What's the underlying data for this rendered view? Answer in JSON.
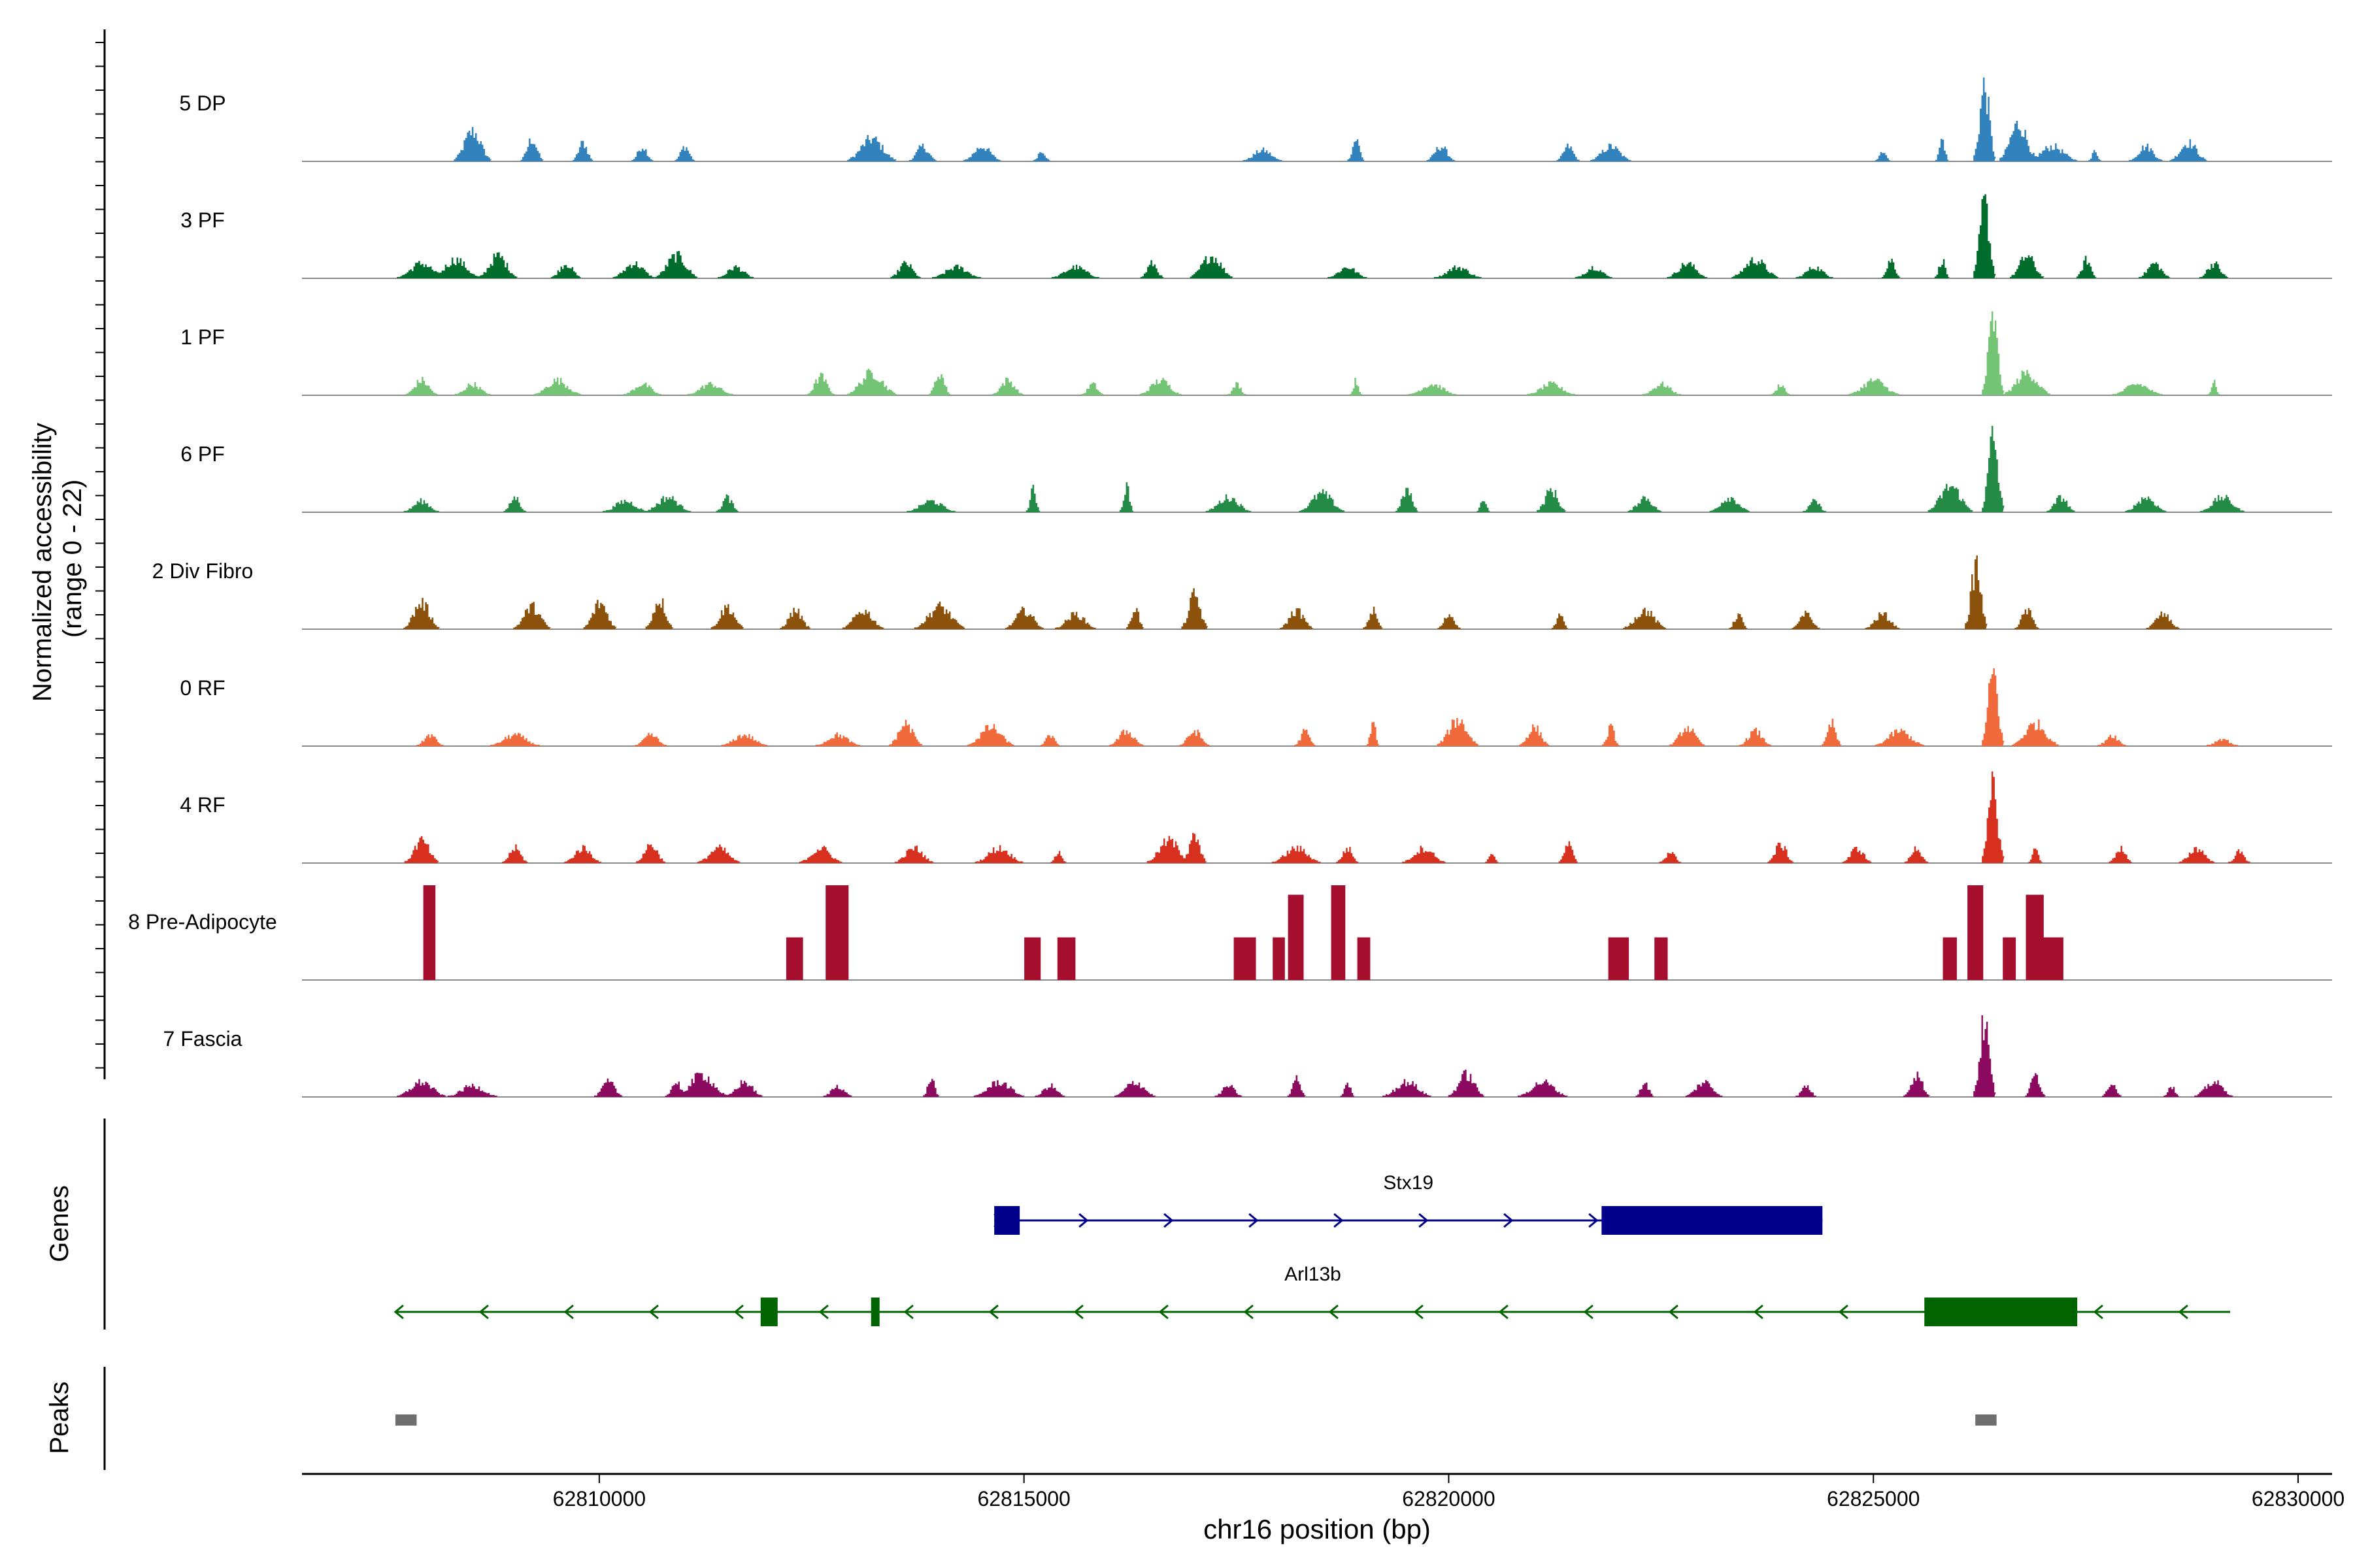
{
  "chart_data": {
    "type": "area",
    "title": "",
    "ylabel_line1": "Normalized accessibility",
    "ylabel_line2": "(range 0 - 22)",
    "ylim": [
      0,
      22
    ],
    "xlabel": "chr16 position (bp)",
    "xlim": [
      62806500,
      62830400
    ],
    "xticks": [
      62810000,
      62815000,
      62820000,
      62825000,
      62830000
    ],
    "xtick_labels": [
      "62810000",
      "62815000",
      "62820000",
      "62825000",
      "62830000"
    ],
    "tracks": [
      {
        "name": "5 DP",
        "color": "#3182BD",
        "peaks": [
          [
            62808500,
            0.4
          ],
          [
            62809200,
            0.3
          ],
          [
            62809800,
            0.25
          ],
          [
            62810500,
            0.2
          ],
          [
            62811000,
            0.2
          ],
          [
            62813200,
            0.3
          ],
          [
            62813800,
            0.2
          ],
          [
            62814500,
            0.2
          ],
          [
            62815200,
            0.15
          ],
          [
            62817800,
            0.15
          ],
          [
            62818900,
            0.3
          ],
          [
            62819900,
            0.2
          ],
          [
            62821400,
            0.2
          ],
          [
            62821900,
            0.2
          ],
          [
            62825100,
            0.15
          ],
          [
            62825800,
            0.3
          ],
          [
            62826300,
            1.0
          ],
          [
            62826700,
            0.5
          ],
          [
            62827100,
            0.2
          ],
          [
            62827600,
            0.15
          ],
          [
            62828200,
            0.2
          ],
          [
            62828700,
            0.25
          ]
        ]
      },
      {
        "name": "3 PF",
        "color": "#006D2C",
        "peaks": [
          [
            62807900,
            0.2
          ],
          [
            62808300,
            0.25
          ],
          [
            62808800,
            0.3
          ],
          [
            62809600,
            0.2
          ],
          [
            62810400,
            0.2
          ],
          [
            62810900,
            0.3
          ],
          [
            62811600,
            0.15
          ],
          [
            62813600,
            0.2
          ],
          [
            62814200,
            0.15
          ],
          [
            62815600,
            0.15
          ],
          [
            62816500,
            0.2
          ],
          [
            62817200,
            0.3
          ],
          [
            62818800,
            0.15
          ],
          [
            62820100,
            0.15
          ],
          [
            62821700,
            0.15
          ],
          [
            62822800,
            0.2
          ],
          [
            62823600,
            0.25
          ],
          [
            62824300,
            0.15
          ],
          [
            62825200,
            0.25
          ],
          [
            62825800,
            0.25
          ],
          [
            62826300,
            1.0
          ],
          [
            62826800,
            0.3
          ],
          [
            62827500,
            0.25
          ],
          [
            62828300,
            0.2
          ],
          [
            62829000,
            0.2
          ]
        ]
      },
      {
        "name": "1 PF",
        "color": "#74C476",
        "peaks": [
          [
            62807900,
            0.2
          ],
          [
            62808500,
            0.15
          ],
          [
            62809500,
            0.2
          ],
          [
            62810500,
            0.15
          ],
          [
            62811300,
            0.15
          ],
          [
            62812600,
            0.25
          ],
          [
            62813200,
            0.3
          ],
          [
            62814000,
            0.3
          ],
          [
            62814800,
            0.2
          ],
          [
            62815800,
            0.15
          ],
          [
            62816600,
            0.2
          ],
          [
            62817500,
            0.15
          ],
          [
            62818900,
            0.2
          ],
          [
            62819800,
            0.15
          ],
          [
            62821200,
            0.15
          ],
          [
            62822500,
            0.15
          ],
          [
            62823900,
            0.15
          ],
          [
            62825000,
            0.2
          ],
          [
            62826400,
            1.0
          ],
          [
            62826800,
            0.3
          ],
          [
            62828100,
            0.15
          ],
          [
            62829000,
            0.2
          ]
        ]
      },
      {
        "name": "6 PF",
        "color": "#238B45",
        "peaks": [
          [
            62807900,
            0.15
          ],
          [
            62809000,
            0.2
          ],
          [
            62810300,
            0.15
          ],
          [
            62810800,
            0.2
          ],
          [
            62811500,
            0.2
          ],
          [
            62813900,
            0.15
          ],
          [
            62815100,
            0.3
          ],
          [
            62816200,
            0.35
          ],
          [
            62817400,
            0.2
          ],
          [
            62818500,
            0.25
          ],
          [
            62819500,
            0.3
          ],
          [
            62820400,
            0.2
          ],
          [
            62821200,
            0.3
          ],
          [
            62822300,
            0.2
          ],
          [
            62823300,
            0.2
          ],
          [
            62824300,
            0.15
          ],
          [
            62825900,
            0.35
          ],
          [
            62826400,
            1.0
          ],
          [
            62827200,
            0.2
          ],
          [
            62828200,
            0.2
          ],
          [
            62829100,
            0.2
          ]
        ]
      },
      {
        "name": "2 Div Fibro",
        "color": "#8C510A",
        "peaks": [
          [
            62807900,
            0.35
          ],
          [
            62809200,
            0.3
          ],
          [
            62810000,
            0.35
          ],
          [
            62810700,
            0.4
          ],
          [
            62811500,
            0.3
          ],
          [
            62812300,
            0.25
          ],
          [
            62813100,
            0.25
          ],
          [
            62814000,
            0.3
          ],
          [
            62815000,
            0.25
          ],
          [
            62815600,
            0.2
          ],
          [
            62816300,
            0.3
          ],
          [
            62817000,
            0.45
          ],
          [
            62818200,
            0.25
          ],
          [
            62819100,
            0.25
          ],
          [
            62820000,
            0.2
          ],
          [
            62821300,
            0.2
          ],
          [
            62822300,
            0.25
          ],
          [
            62823400,
            0.2
          ],
          [
            62824200,
            0.2
          ],
          [
            62825100,
            0.2
          ],
          [
            62826200,
            0.85
          ],
          [
            62826800,
            0.25
          ],
          [
            62828400,
            0.2
          ]
        ]
      },
      {
        "name": "0 RF",
        "color": "#F16A3C",
        "peaks": [
          [
            62808000,
            0.15
          ],
          [
            62809000,
            0.15
          ],
          [
            62810600,
            0.15
          ],
          [
            62811700,
            0.15
          ],
          [
            62812800,
            0.15
          ],
          [
            62813600,
            0.3
          ],
          [
            62814600,
            0.25
          ],
          [
            62815300,
            0.15
          ],
          [
            62816200,
            0.2
          ],
          [
            62817000,
            0.2
          ],
          [
            62818300,
            0.2
          ],
          [
            62819100,
            0.35
          ],
          [
            62820100,
            0.35
          ],
          [
            62821000,
            0.25
          ],
          [
            62821900,
            0.25
          ],
          [
            62822800,
            0.25
          ],
          [
            62823600,
            0.2
          ],
          [
            62824500,
            0.3
          ],
          [
            62825300,
            0.2
          ],
          [
            62826400,
            1.0
          ],
          [
            62826900,
            0.3
          ],
          [
            62827800,
            0.15
          ],
          [
            62829100,
            0.1
          ]
        ]
      },
      {
        "name": "4 RF",
        "color": "#D7301F",
        "peaks": [
          [
            62807900,
            0.3
          ],
          [
            62809000,
            0.2
          ],
          [
            62809800,
            0.2
          ],
          [
            62810600,
            0.25
          ],
          [
            62811400,
            0.2
          ],
          [
            62812600,
            0.2
          ],
          [
            62813700,
            0.2
          ],
          [
            62814700,
            0.2
          ],
          [
            62815400,
            0.15
          ],
          [
            62816700,
            0.3
          ],
          [
            62817000,
            0.35
          ],
          [
            62818200,
            0.2
          ],
          [
            62818800,
            0.2
          ],
          [
            62819700,
            0.2
          ],
          [
            62820500,
            0.15
          ],
          [
            62821400,
            0.25
          ],
          [
            62822600,
            0.15
          ],
          [
            62823900,
            0.25
          ],
          [
            62824800,
            0.2
          ],
          [
            62825500,
            0.2
          ],
          [
            62826400,
            1.0
          ],
          [
            62826900,
            0.2
          ],
          [
            62827900,
            0.2
          ],
          [
            62828800,
            0.2
          ],
          [
            62829300,
            0.15
          ]
        ]
      },
      {
        "name": "8 Pre-Adipocyte",
        "color": "#A50F2D",
        "peaks": [
          [
            62808000,
            1.0
          ],
          [
            62812300,
            0.45
          ],
          [
            62812800,
            1.0
          ],
          [
            62815100,
            0.45
          ],
          [
            62815500,
            0.45
          ],
          [
            62817600,
            0.45
          ],
          [
            62818000,
            0.45
          ],
          [
            62818200,
            0.9
          ],
          [
            62818700,
            1.0
          ],
          [
            62819000,
            0.45
          ],
          [
            62822000,
            0.45
          ],
          [
            62822500,
            0.45
          ],
          [
            62825900,
            0.45
          ],
          [
            62826200,
            1.0
          ],
          [
            62826600,
            0.45
          ],
          [
            62826900,
            0.9
          ],
          [
            62827100,
            0.45
          ]
        ]
      },
      {
        "name": "7 Fascia",
        "color": "#8B0A60",
        "peaks": [
          [
            62807900,
            0.2
          ],
          [
            62808500,
            0.15
          ],
          [
            62810100,
            0.2
          ],
          [
            62810900,
            0.2
          ],
          [
            62811200,
            0.3
          ],
          [
            62811700,
            0.2
          ],
          [
            62812800,
            0.15
          ],
          [
            62813900,
            0.25
          ],
          [
            62814700,
            0.2
          ],
          [
            62815300,
            0.15
          ],
          [
            62816300,
            0.2
          ],
          [
            62817400,
            0.15
          ],
          [
            62818200,
            0.25
          ],
          [
            62818800,
            0.2
          ],
          [
            62819500,
            0.2
          ],
          [
            62820200,
            0.3
          ],
          [
            62821100,
            0.2
          ],
          [
            62822300,
            0.2
          ],
          [
            62823000,
            0.2
          ],
          [
            62824200,
            0.15
          ],
          [
            62825500,
            0.3
          ],
          [
            62826300,
            1.0
          ],
          [
            62826900,
            0.3
          ],
          [
            62827800,
            0.2
          ],
          [
            62828500,
            0.15
          ],
          [
            62829000,
            0.2
          ]
        ]
      }
    ],
    "genes_label": "Genes",
    "genes": [
      {
        "name": "Stx19",
        "strand": "+",
        "color": "#00008B",
        "start": 62814650,
        "end": 62824400,
        "exons": [
          [
            62814650,
            62814950
          ],
          [
            62821800,
            62824400
          ]
        ]
      },
      {
        "name": "Arl13b",
        "strand": "-",
        "color": "#006400",
        "start": 62807600,
        "end": 62829200,
        "exons": [
          [
            62811900,
            62812100
          ],
          [
            62813200,
            62813300
          ],
          [
            62825600,
            62827400
          ]
        ]
      }
    ],
    "peaks_label": "Peaks",
    "peak_regions": [
      [
        62807600,
        62807850
      ],
      [
        62826200,
        62826450
      ]
    ]
  }
}
